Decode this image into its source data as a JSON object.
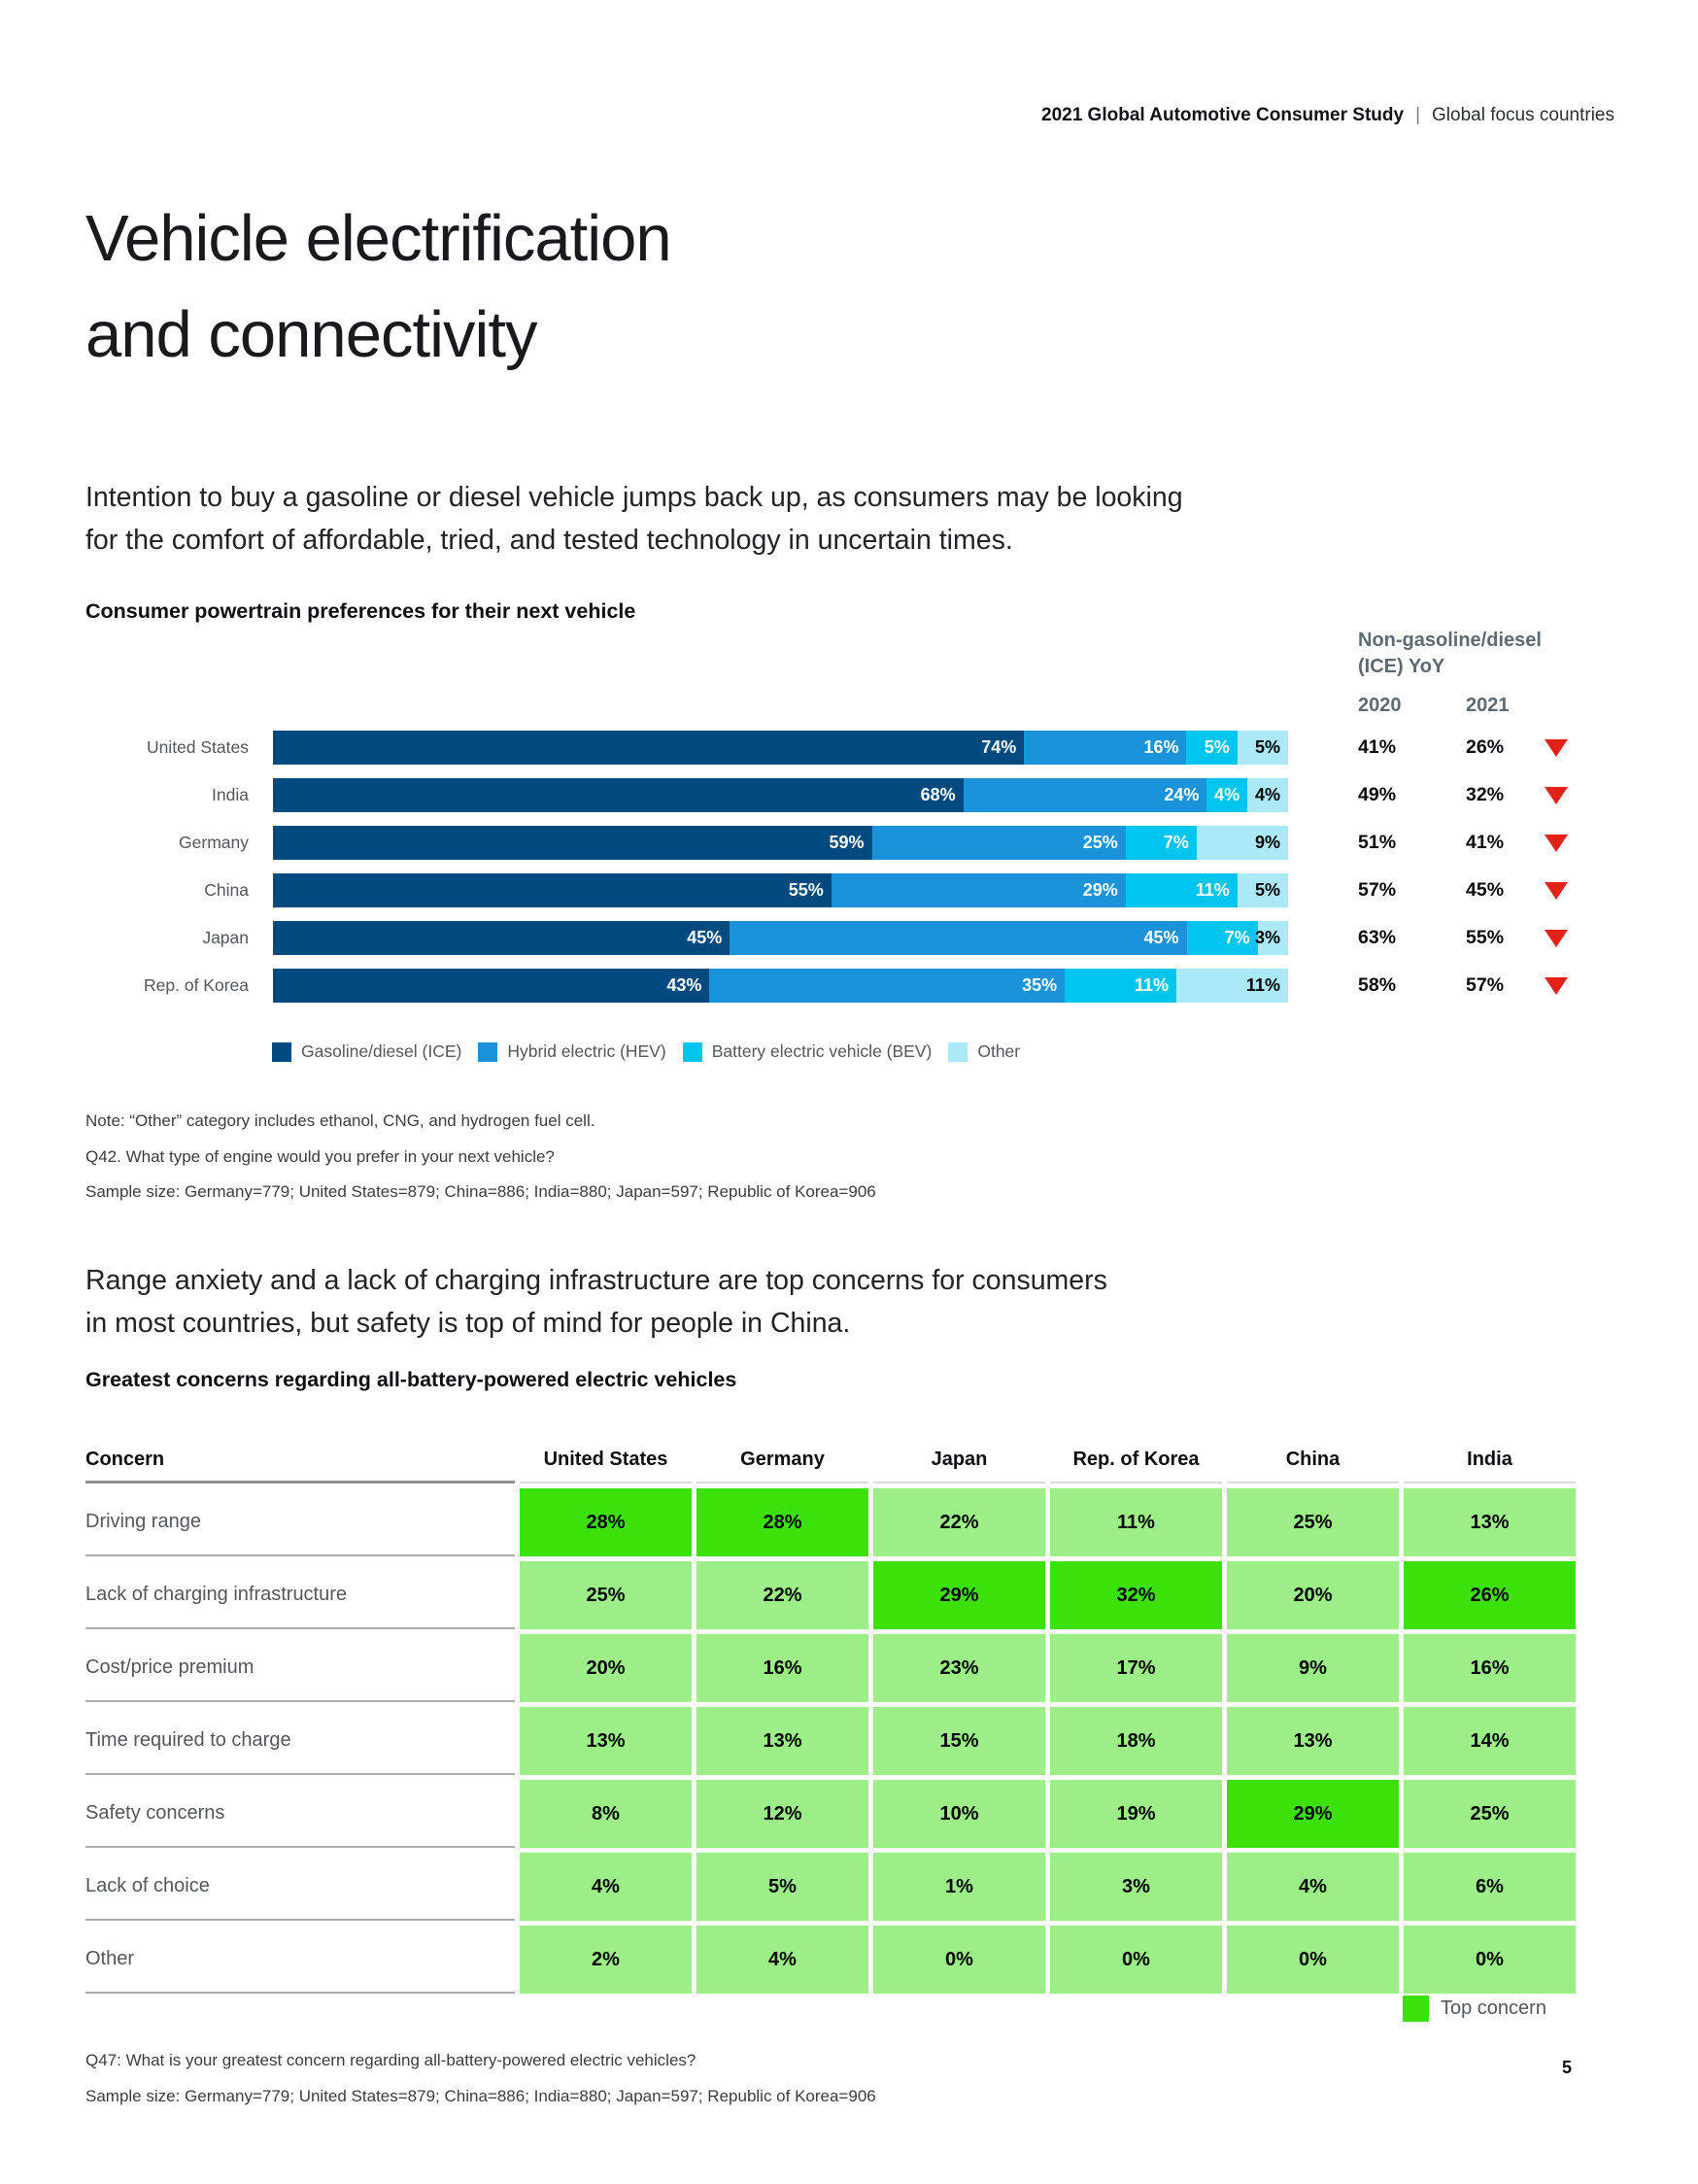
{
  "header": {
    "study": "2021 Global Automotive Consumer Study",
    "divider": "|",
    "section": "Global focus countries"
  },
  "title": {
    "line1": "Vehicle electrification",
    "line2": "and connectivity"
  },
  "intro1": {
    "line1": "Intention to buy a gasoline or diesel vehicle jumps back up, as consumers may be looking",
    "line2": "for the comfort of affordable, tried, and tested technology in uncertain times."
  },
  "powertrain": {
    "heading": "Consumer powertrain preferences for their next vehicle",
    "yoy_header_line1": "Non-gasoline/diesel",
    "yoy_header_line2": "(ICE) YoY",
    "yoy_col_2020": "2020",
    "yoy_col_2021": "2021",
    "notes": [
      "Note: “Other” category includes ethanol, CNG, and hydrogen fuel cell.",
      "Q42. What type of engine would you prefer in your next vehicle?",
      "Sample size: Germany=779; United States=879; China=886; India=880; Japan=597; Republic of Korea=906"
    ]
  },
  "chart_data": {
    "type": "bar",
    "orientation": "horizontal-stacked",
    "title": "Consumer powertrain preferences for their next vehicle",
    "categories": [
      "United States",
      "India",
      "Germany",
      "China",
      "Japan",
      "Rep. of Korea"
    ],
    "series": [
      {
        "name": "Gasoline/diesel (ICE)",
        "color": "#004A80",
        "values": [
          74,
          68,
          59,
          55,
          45,
          43
        ]
      },
      {
        "name": "Hybrid electric (HEV)",
        "color": "#1B93DA",
        "values": [
          16,
          24,
          25,
          29,
          45,
          35
        ]
      },
      {
        "name": "Battery electric vehicle (BEV)",
        "color": "#00C5EE",
        "values": [
          5,
          4,
          7,
          11,
          7,
          11
        ]
      },
      {
        "name": "Other",
        "color": "#ACE9F6",
        "values": [
          5,
          4,
          9,
          5,
          3,
          11
        ]
      }
    ],
    "xlim": [
      0,
      100
    ],
    "value_suffix": "%",
    "yoy": {
      "label": "Non-gasoline/diesel (ICE) YoY",
      "y2020": [
        41,
        49,
        51,
        57,
        63,
        58
      ],
      "y2021": [
        26,
        32,
        41,
        45,
        55,
        57
      ],
      "trend": [
        "down",
        "down",
        "down",
        "down",
        "down",
        "down"
      ],
      "trend_color": "#E22118"
    }
  },
  "intro2": {
    "line1": "Range anxiety and a lack of charging infrastructure are top concerns for consumers",
    "line2": "in most countries, but safety is top of mind for people in China."
  },
  "concerns": {
    "heading": "Greatest concerns regarding all-battery-powered electric vehicles",
    "columns": [
      "Concern",
      "United States",
      "Germany",
      "Japan",
      "Rep. of Korea",
      "China",
      "India"
    ],
    "value_suffix": "%",
    "colors": {
      "cell": "#9CEE87",
      "top_concern": "#3CE10A"
    },
    "rows": [
      {
        "label": "Driving range",
        "values": [
          28,
          28,
          22,
          11,
          25,
          13
        ],
        "top": [
          true,
          true,
          false,
          false,
          false,
          false
        ]
      },
      {
        "label": "Lack of charging infrastructure",
        "values": [
          25,
          22,
          29,
          32,
          20,
          26
        ],
        "top": [
          false,
          false,
          true,
          true,
          false,
          true
        ]
      },
      {
        "label": "Cost/price premium",
        "values": [
          20,
          16,
          23,
          17,
          9,
          16
        ],
        "top": [
          false,
          false,
          false,
          false,
          false,
          false
        ]
      },
      {
        "label": "Time required to charge",
        "values": [
          13,
          13,
          15,
          18,
          13,
          14
        ],
        "top": [
          false,
          false,
          false,
          false,
          false,
          false
        ]
      },
      {
        "label": "Safety concerns",
        "values": [
          8,
          12,
          10,
          19,
          29,
          25
        ],
        "top": [
          false,
          false,
          false,
          false,
          true,
          false
        ]
      },
      {
        "label": "Lack of choice",
        "values": [
          4,
          5,
          1,
          3,
          4,
          6
        ],
        "top": [
          false,
          false,
          false,
          false,
          false,
          false
        ]
      },
      {
        "label": "Other",
        "values": [
          2,
          4,
          0,
          0,
          0,
          0
        ],
        "top": [
          false,
          false,
          false,
          false,
          false,
          false
        ]
      }
    ],
    "legend_label": "Top concern"
  },
  "footer": {
    "lines": [
      "Q47: What is your greatest concern regarding all-battery-powered electric vehicles?",
      "Sample size: Germany=779; United States=879; China=886; India=880; Japan=597; Republic of Korea=906"
    ],
    "page_number": "5"
  }
}
